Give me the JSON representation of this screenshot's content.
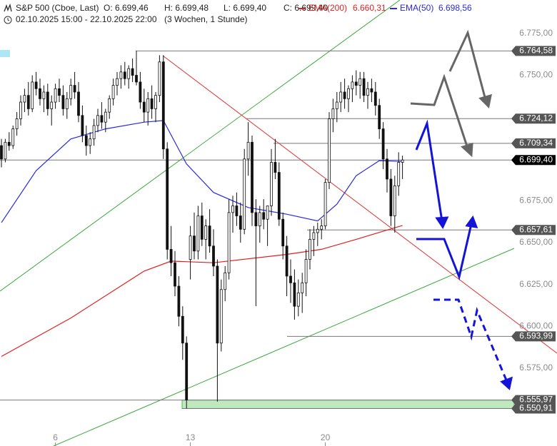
{
  "chart_data": {
    "type": "candlestick",
    "header": {
      "symbol": "S&P 500 (Cboe, Last)",
      "open": "O: 6.699,46",
      "high": "H: 6.699,48",
      "low": "L: 6.699,40",
      "close": "C: 6.699,40",
      "ema200_value": "6.660,31",
      "ema50_value": "6.698,56",
      "range": "02.10.2025 15:00 - 22.10.2025 22:00",
      "period": "(3 Wochen, 1 Stunde)"
    },
    "ylim": [
      6528.5,
      6795
    ],
    "yticks": [
      {
        "value": 6775,
        "label": "6.775,00"
      },
      {
        "value": 6750,
        "label": "6.750,00"
      },
      {
        "value": 6675,
        "label": "6.675,00"
      },
      {
        "value": 6650,
        "label": "6.650,00"
      },
      {
        "value": 6625,
        "label": "6.625,00"
      },
      {
        "value": 6600,
        "label": "6.600,00"
      },
      {
        "value": 6575,
        "label": "6.575,00"
      }
    ],
    "xticks": [
      {
        "value": 14,
        "label": "6"
      },
      {
        "value": 49,
        "label": "13"
      },
      {
        "value": 84,
        "label": "20"
      }
    ],
    "up_color": "#ffffff",
    "down_color": "#111111",
    "candles": [
      [
        6708,
        6712,
        6695,
        6700
      ],
      [
        6700,
        6712,
        6698,
        6710
      ],
      [
        6710,
        6716,
        6705,
        6708
      ],
      [
        6708,
        6720,
        6706,
        6718
      ],
      [
        6718,
        6728,
        6714,
        6724
      ],
      [
        6724,
        6738,
        6720,
        6734
      ],
      [
        6734,
        6742,
        6728,
        6738
      ],
      [
        6738,
        6746,
        6726,
        6730
      ],
      [
        6730,
        6750,
        6728,
        6746
      ],
      [
        6746,
        6752,
        6738,
        6742
      ],
      [
        6742,
        6748,
        6732,
        6736
      ],
      [
        6736,
        6744,
        6728,
        6740
      ],
      [
        6740,
        6745,
        6726,
        6730
      ],
      [
        6730,
        6738,
        6720,
        6734
      ],
      [
        6734,
        6745,
        6730,
        6742
      ],
      [
        6742,
        6748,
        6734,
        6738
      ],
      [
        6738,
        6744,
        6726,
        6730
      ],
      [
        6730,
        6740,
        6724,
        6736
      ],
      [
        6736,
        6748,
        6732,
        6744
      ],
      [
        6744,
        6752,
        6736,
        6740
      ],
      [
        6740,
        6746,
        6722,
        6726
      ],
      [
        6726,
        6732,
        6710,
        6714
      ],
      [
        6714,
        6720,
        6702,
        6708
      ],
      [
        6708,
        6716,
        6703,
        6712
      ],
      [
        6712,
        6724,
        6708,
        6720
      ],
      [
        6720,
        6730,
        6716,
        6726
      ],
      [
        6726,
        6734,
        6718,
        6722
      ],
      [
        6722,
        6730,
        6716,
        6728
      ],
      [
        6728,
        6738,
        6724,
        6736
      ],
      [
        6736,
        6748,
        6732,
        6744
      ],
      [
        6744,
        6752,
        6738,
        6748
      ],
      [
        6748,
        6756,
        6742,
        6752
      ],
      [
        6752,
        6758,
        6744,
        6748
      ],
      [
        6748,
        6756,
        6742,
        6754
      ],
      [
        6754,
        6760,
        6746,
        6750
      ],
      [
        6750,
        6764.58,
        6744,
        6746
      ],
      [
        6746,
        6752,
        6730,
        6734
      ],
      [
        6734,
        6742,
        6722,
        6728
      ],
      [
        6728,
        6740,
        6720,
        6736
      ],
      [
        6736,
        6744,
        6724,
        6730
      ],
      [
        6730,
        6740,
        6722,
        6738
      ],
      [
        6738,
        6762,
        6734,
        6758
      ],
      [
        6758,
        6762,
        6700,
        6706
      ],
      [
        6706,
        6710,
        6640,
        6646
      ],
      [
        6646,
        6660,
        6630,
        6638
      ],
      [
        6638,
        6645,
        6618,
        6624
      ],
      [
        6624,
        6630,
        6600,
        6606
      ],
      [
        6606,
        6612,
        6580,
        6590
      ],
      [
        6590,
        6594,
        6550.91,
        6556
      ],
      [
        6640,
        6660,
        6628,
        6654
      ],
      [
        6654,
        6668,
        6640,
        6645
      ],
      [
        6645,
        6672,
        6640,
        6666
      ],
      [
        6666,
        6674,
        6648,
        6652
      ],
      [
        6652,
        6664,
        6640,
        6660
      ],
      [
        6660,
        6670,
        6644,
        6648
      ],
      [
        6648,
        6658,
        6630,
        6636
      ],
      [
        6636,
        6640,
        6555,
        6590
      ],
      [
        6590,
        6628,
        6585,
        6622
      ],
      [
        6622,
        6636,
        6615,
        6632
      ],
      [
        6632,
        6676,
        6628,
        6668
      ],
      [
        6668,
        6678,
        6656,
        6672
      ],
      [
        6672,
        6680,
        6660,
        6666
      ],
      [
        6666,
        6674,
        6650,
        6658
      ],
      [
        6658,
        6706,
        6655,
        6700
      ],
      [
        6700,
        6722,
        6690,
        6710
      ],
      [
        6710,
        6714,
        6660,
        6668
      ],
      [
        6668,
        6676,
        6612,
        6660
      ],
      [
        6660,
        6672,
        6650,
        6668
      ],
      [
        6668,
        6676,
        6658,
        6664
      ],
      [
        6664,
        6670,
        6648,
        6672
      ],
      [
        6672,
        6706,
        6666,
        6698
      ],
      [
        6698,
        6712,
        6688,
        6692
      ],
      [
        6692,
        6698,
        6660,
        6664
      ],
      [
        6664,
        6668,
        6640,
        6648
      ],
      [
        6648,
        6654,
        6618,
        6630
      ],
      [
        6630,
        6640,
        6614,
        6626
      ],
      [
        6626,
        6634,
        6604,
        6612
      ],
      [
        6612,
        6628,
        6606,
        6620
      ],
      [
        6620,
        6632,
        6608,
        6626
      ],
      [
        6626,
        6646,
        6618,
        6640
      ],
      [
        6640,
        6658,
        6634,
        6652
      ],
      [
        6652,
        6660,
        6642,
        6656
      ],
      [
        6656,
        6662,
        6648,
        6658
      ],
      [
        6658,
        6664,
        6652,
        6660
      ],
      [
        6660,
        6688,
        6658,
        6686
      ],
      [
        6686,
        6728,
        6682,
        6724
      ],
      [
        6724,
        6736,
        6716,
        6730
      ],
      [
        6730,
        6740,
        6722,
        6734
      ],
      [
        6734,
        6746,
        6728,
        6740
      ],
      [
        6740,
        6748,
        6730,
        6736
      ],
      [
        6736,
        6744,
        6728,
        6742
      ],
      [
        6742,
        6750,
        6734,
        6746
      ],
      [
        6746,
        6753,
        6738,
        6744
      ],
      [
        6744,
        6752,
        6736,
        6748
      ],
      [
        6748,
        6752,
        6734,
        6738
      ],
      [
        6738,
        6746,
        6730,
        6742
      ],
      [
        6742,
        6748,
        6734,
        6740
      ],
      [
        6740,
        6746,
        6726,
        6732
      ],
      [
        6732,
        6736,
        6712,
        6718
      ],
      [
        6718,
        6722,
        6694,
        6700
      ],
      [
        6700,
        6706,
        6680,
        6688
      ],
      [
        6688,
        6694,
        6660,
        6666
      ],
      [
        6666,
        6690,
        6656,
        6684
      ],
      [
        6684,
        6704,
        6678,
        6698
      ],
      [
        6698,
        6702,
        6688,
        6699.4
      ]
    ],
    "series": [
      {
        "name": "EMA(200)",
        "color": "#e02020",
        "x": [
          0,
          18,
          37,
          44,
          55,
          74,
          83,
          92,
          104
        ],
        "values": [
          6582,
          6605,
          6633,
          6639,
          6638,
          6643,
          6646,
          6652,
          6660.31
        ]
      },
      {
        "name": "EMA(50)",
        "color": "#2a2ae0",
        "x": [
          0,
          9,
          18,
          27,
          37,
          42,
          48,
          55,
          64,
          74,
          82,
          87,
          92,
          98,
          104
        ],
        "values": [
          6662,
          6693,
          6712,
          6718,
          6722,
          6723,
          6697,
          6680,
          6671,
          6667,
          6663,
          6673,
          6690,
          6699,
          6698.56
        ]
      }
    ],
    "levels": [
      {
        "value": 6764.58,
        "label": "6.764,58",
        "color": "#555555"
      },
      {
        "value": 6724.12,
        "label": "6.724,12",
        "color": "#555555"
      },
      {
        "value": 6709.34,
        "label": "6.709,34",
        "color": "#555555"
      },
      {
        "value": 6699.4,
        "label": "6.699,40",
        "color": "#000000"
      },
      {
        "value": 6657.61,
        "label": "6.657,61",
        "color": "#555555"
      },
      {
        "value": 6593.99,
        "label": "6.593,99",
        "color": "#555555"
      },
      {
        "value": 6555.97,
        "label": "6.555,97",
        "color": "#555555"
      },
      {
        "value": 6550.91,
        "label": "6.550,91",
        "color": "#555555"
      }
    ],
    "zone_color": "#bfe8bf"
  }
}
